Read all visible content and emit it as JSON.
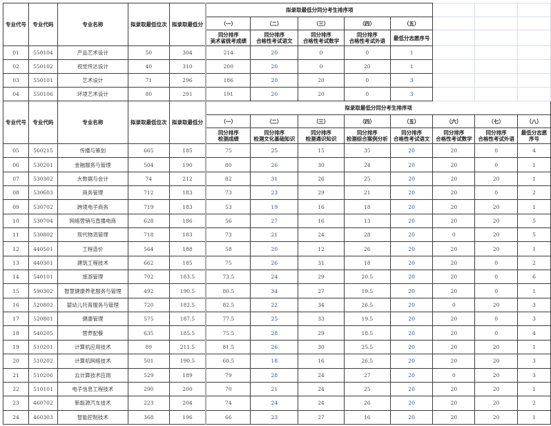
{
  "table1": {
    "columns": [
      "专业代号",
      "专业代码",
      "专业名称",
      "拟录取最低位次",
      "拟录取最低分"
    ],
    "group_title": "拟录取最低分同分考生排序项",
    "sub_indices": [
      "（一）",
      "（二）",
      "（三）",
      "（四）",
      "（五）"
    ],
    "sub_labels": [
      "同分排序\n美术省统考成绩",
      "同分排序\n合格性考试语文",
      "同分排序\n合格性考试数学",
      "同分排序\n合格性考试外语",
      "最低分志愿序号"
    ],
    "rows": [
      [
        "01",
        "550104",
        "产品艺术设计",
        "50",
        "304",
        "214",
        "20",
        "0",
        "0",
        "1"
      ],
      [
        "02",
        "550102",
        "视觉传达设计",
        "40",
        "310",
        "200",
        "20",
        "0",
        "20",
        "1"
      ],
      [
        "03",
        "550101",
        "艺术设计",
        "71",
        "296",
        "186",
        "20",
        "20",
        "0",
        "3"
      ],
      [
        "04",
        "550106",
        "环境艺术设计",
        "80",
        "291",
        "191",
        "20",
        "20",
        "0",
        "3"
      ]
    ]
  },
  "table2": {
    "columns": [
      "专业代号",
      "专业代码",
      "专业名称",
      "拟录取最低位次",
      "拟录取最低分"
    ],
    "group_title": "拟录取最低分同分考生排序项",
    "sub_indices": [
      "（一）",
      "（二）",
      "（三）",
      "（四）",
      "（五）",
      "（六）",
      "（七）",
      "（八）"
    ],
    "sub_labels": [
      "同分排序\n检测成绩",
      "同分排序\n检测文化基础知识",
      "同分排序\n检测通识知识",
      "同分排序\n检测综合案例分析",
      "同分排序\n合格性考试语文",
      "同分排序\n合格性考试数学",
      "同分排序\n合格性考试外语",
      "最低分志愿\n序号"
    ],
    "rows": [
      [
        "05",
        "560215",
        "传播与策划",
        "665",
        "185",
        "75",
        "25",
        "15",
        "35",
        "20",
        "20",
        "0",
        "4"
      ],
      [
        "06",
        "530201",
        "金融服务与管理",
        "504",
        "190",
        "80",
        "26",
        "30",
        "24",
        "20",
        "20",
        "0",
        "1"
      ],
      [
        "07",
        "530302",
        "大数据与会计",
        "74",
        "212",
        "82",
        "31",
        "26",
        "25",
        "20",
        "20",
        "20",
        "1"
      ],
      [
        "08",
        "530603",
        "商务管理",
        "712",
        "183",
        "73",
        "23",
        "29",
        "21",
        "20",
        "20",
        "0",
        "2"
      ],
      [
        "09",
        "530702",
        "跨境电子商务",
        "719",
        "183",
        "53",
        "19",
        "16",
        "18",
        "20",
        "20",
        "20",
        "1"
      ],
      [
        "10",
        "530704",
        "网络营销与直播电商",
        "628",
        "186",
        "56",
        "27",
        "16",
        "13",
        "20",
        "20",
        "20",
        "5"
      ],
      [
        "11",
        "530802",
        "现代物流管理",
        "718",
        "183",
        "73",
        "21",
        "24",
        "28",
        "20",
        "0",
        "20",
        "5"
      ],
      [
        "12",
        "440501",
        "工程造价",
        "564",
        "188",
        "58",
        "20",
        "12",
        "26",
        "20",
        "20",
        "20",
        "1"
      ],
      [
        "13",
        "440301",
        "建筑工程技术",
        "662",
        "185",
        "75",
        "26",
        "31",
        "18",
        "20",
        "20",
        "0",
        "2"
      ],
      [
        "14",
        "540101",
        "旅游管理",
        "702",
        "183.5",
        "73.5",
        "24",
        "29",
        "20.5",
        "20",
        "20",
        "0",
        "6"
      ],
      [
        "15",
        "590302",
        "智慧健康养老服务与管理",
        "492",
        "190.5",
        "80.5",
        "34",
        "27",
        "19.5",
        "20",
        "20",
        "0",
        "1"
      ],
      [
        "16",
        "520802",
        "婴幼儿托育服务与管理",
        "720",
        "182.5",
        "82.5",
        "22",
        "34",
        "26.5",
        "20",
        "0",
        "20",
        "3"
      ],
      [
        "17",
        "520801",
        "健康管理",
        "575",
        "187.5",
        "77.5",
        "25",
        "33",
        "19.5",
        "20",
        "20",
        "0",
        "3"
      ],
      [
        "18",
        "540205",
        "营养配餐",
        "635",
        "185.5",
        "75.5",
        "28",
        "29",
        "18.5",
        "20",
        "20",
        "0",
        "4"
      ],
      [
        "19",
        "510201",
        "计算机应用技术",
        "89",
        "211.5",
        "81.5",
        "26",
        "30",
        "25.5",
        "20",
        "20",
        "20",
        "1"
      ],
      [
        "20",
        "510202",
        "计算机网络技术",
        "501",
        "190.5",
        "60.5",
        "18",
        "16",
        "26.5",
        "20",
        "20",
        "20",
        "3"
      ],
      [
        "21",
        "510206",
        "云计算技术应用",
        "529",
        "189",
        "79",
        "28",
        "24",
        "27",
        "20",
        "0",
        "20",
        "3"
      ],
      [
        "22",
        "510101",
        "电子信息工程技术",
        "290",
        "200",
        "70",
        "21",
        "24",
        "25",
        "20",
        "20",
        "20",
        "1"
      ],
      [
        "23",
        "460702",
        "新能源汽车技术",
        "223",
        "204",
        "74",
        "24",
        "24",
        "26",
        "20",
        "20",
        "20",
        "2"
      ],
      [
        "24",
        "460303",
        "智能控制技术",
        "368",
        "196",
        "66",
        "23",
        "27",
        "16",
        "20",
        "20",
        "20",
        "1"
      ]
    ]
  }
}
